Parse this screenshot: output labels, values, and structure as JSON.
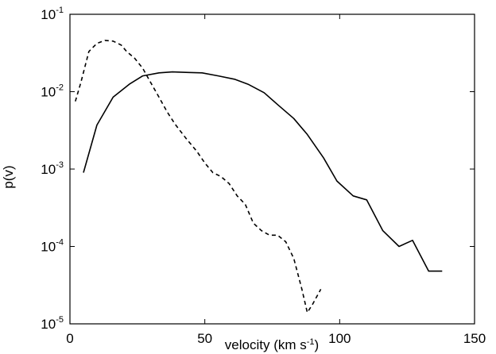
{
  "chart_data": {
    "type": "line",
    "title": "",
    "xlabel": "velocity (km s",
    "xlabel_sup": "-1",
    "xlabel_close": ")",
    "ylabel": "p(v)",
    "xlim": [
      0,
      150
    ],
    "ylim": [
      1e-05,
      0.1
    ],
    "yscale": "log",
    "grid": false,
    "legend": "none",
    "x_ticks": [
      {
        "value": 0,
        "label": "0"
      },
      {
        "value": 50,
        "label": "50"
      },
      {
        "value": 100,
        "label": "100"
      },
      {
        "value": 150,
        "label": "150"
      }
    ],
    "y_ticks": [
      {
        "value": 0.1,
        "base": "10",
        "exp": "-1"
      },
      {
        "value": 0.01,
        "base": "10",
        "exp": "-2"
      },
      {
        "value": 0.001,
        "base": "10",
        "exp": "-3"
      },
      {
        "value": 0.0001,
        "base": "10",
        "exp": "-4"
      },
      {
        "value": 1e-05,
        "base": "10",
        "exp": "-5"
      }
    ],
    "series": [
      {
        "style": "solid",
        "color": "#000000",
        "x": [
          5,
          10,
          16,
          22,
          27,
          33,
          38,
          44,
          49,
          55,
          61,
          66,
          72,
          77,
          83,
          88,
          94,
          99,
          105,
          110,
          116,
          122,
          127,
          133,
          138
        ],
        "y": [
          0.0009,
          0.0037,
          0.0085,
          0.0125,
          0.016,
          0.0175,
          0.018,
          0.0177,
          0.0175,
          0.016,
          0.0145,
          0.0125,
          0.0097,
          0.0068,
          0.0045,
          0.0028,
          0.0014,
          0.0007,
          0.00045,
          0.0004,
          0.00016,
          0.0001,
          0.00012,
          4.8e-05,
          4.8e-05
        ]
      },
      {
        "style": "dashed",
        "color": "#000000",
        "x": [
          2,
          4,
          7,
          10,
          13,
          16,
          19,
          21,
          24,
          27,
          30,
          33,
          36,
          39,
          43,
          47,
          50,
          53,
          56,
          59,
          62,
          65,
          68,
          71,
          74,
          77,
          80,
          83,
          86,
          88,
          90,
          93
        ],
        "y": [
          0.0075,
          0.013,
          0.033,
          0.042,
          0.046,
          0.045,
          0.04,
          0.033,
          0.027,
          0.02,
          0.013,
          0.0085,
          0.0055,
          0.0038,
          0.0025,
          0.0017,
          0.0012,
          0.0009,
          0.0008,
          0.00065,
          0.00045,
          0.00035,
          0.0002,
          0.00016,
          0.00014,
          0.00014,
          0.000115,
          7e-05,
          2.8e-05,
          1.4e-05,
          1.8e-05,
          2.8e-05
        ]
      }
    ]
  }
}
